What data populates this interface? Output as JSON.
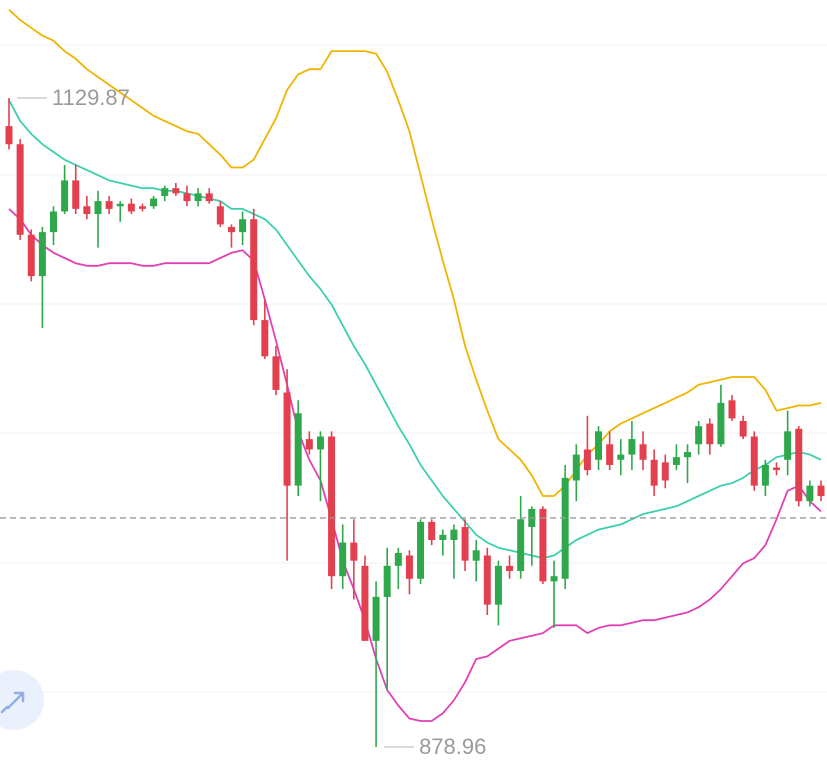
{
  "chart_data": {
    "type": "candlestick",
    "ylim": [
      869.3,
      1167.75
    ],
    "up_color": "#2ea84a",
    "down_color": "#e2404f",
    "price_line": 967.5,
    "price_line_color": "#9a9a9a",
    "open": [
      1119,
      1112,
      1077,
      1061,
      1078,
      1086,
      1098,
      1088,
      1085,
      1090,
      1088,
      1089,
      1088,
      1088,
      1092,
      1095,
      1093,
      1090,
      1093,
      1088,
      1080,
      1078,
      1083,
      1044,
      1030,
      1016,
      980,
      998,
      994,
      999,
      945,
      958,
      949,
      920,
      937,
      949,
      953,
      944,
      966,
      959,
      959,
      964,
      951,
      953,
      934,
      949,
      947,
      964,
      971,
      943,
      944,
      982,
      994,
      990,
      996,
      990,
      992,
      996,
      990,
      989,
      988,
      991,
      996,
      1004,
      996,
      1013,
      1005,
      999,
      980,
      987,
      990,
      1002,
      974,
      980
    ],
    "high": [
      1129.87,
      1114,
      1079,
      1080,
      1088,
      1104,
      1104,
      1092,
      1094,
      1092,
      1090,
      1091,
      1089,
      1092,
      1096,
      1097,
      1096,
      1095,
      1095,
      1090,
      1081,
      1086,
      1087,
      1052,
      1034,
      1025,
      1013,
      1001,
      1001,
      1001,
      965,
      967,
      953,
      943,
      956,
      956,
      955,
      967,
      967,
      963,
      965,
      967,
      959,
      956,
      951,
      953,
      976,
      972,
      972,
      951,
      988,
      996,
      1007,
      1003,
      1001,
      998,
      1005,
      1001,
      994,
      992,
      996,
      996,
      1005,
      1006,
      1019,
      1015,
      1007,
      1001,
      990,
      989,
      1009,
      1003,
      982,
      982
    ],
    "low": [
      1110,
      1075,
      1059,
      1041,
      1073,
      1085,
      1085,
      1083,
      1072,
      1085,
      1082,
      1085,
      1086,
      1087,
      1090,
      1092,
      1088,
      1088,
      1089,
      1080,
      1072,
      1073,
      1042,
      1029,
      1015,
      951,
      976,
      992,
      974,
      940,
      940,
      936,
      920,
      878.96,
      901,
      940,
      938,
      942,
      957,
      953,
      944,
      947,
      943,
      930,
      926,
      944,
      944,
      949,
      942,
      925,
      940,
      974,
      984,
      986,
      986,
      984,
      986,
      986,
      976,
      979,
      986,
      981,
      992,
      992,
      995,
      1005,
      998,
      978,
      976,
      984,
      984,
      972,
      972,
      974
    ],
    "close": [
      1112,
      1077,
      1061,
      1078,
      1086,
      1098,
      1087,
      1085,
      1090,
      1087,
      1089,
      1086,
      1087,
      1091,
      1095,
      1093,
      1090,
      1093,
      1090,
      1081,
      1078,
      1083,
      1044,
      1030,
      1017,
      980,
      1008,
      994,
      999,
      945,
      958,
      951,
      920,
      937,
      949,
      954,
      944,
      966,
      959,
      961,
      963,
      951,
      955,
      934,
      949,
      947,
      967,
      971,
      943,
      945,
      983,
      992,
      986,
      1001,
      988,
      992,
      998,
      990,
      980,
      982,
      991,
      993,
      1003,
      996,
      1012,
      1006,
      999,
      980,
      988,
      986,
      1001,
      974,
      980,
      976
    ],
    "lines": [
      {
        "color": "#f0b400",
        "values": [
          1164,
          1160,
          1157,
          1154,
          1152,
          1148,
          1145,
          1141,
          1138,
          1135,
          1132,
          1129,
          1126,
          1123,
          1121,
          1119,
          1117,
          1116,
          1112,
          1108,
          1103,
          1103,
          1106,
          1114,
          1122,
          1133,
          1139,
          1141,
          1141,
          1148,
          1148,
          1148,
          1148,
          1147,
          1140,
          1129,
          1117,
          1100,
          1083,
          1067,
          1052,
          1034,
          1021,
          1009,
          998,
          994,
          990,
          984,
          976,
          976,
          980,
          986,
          992,
          996,
          1001,
          1004,
          1006,
          1008,
          1010,
          1012,
          1014,
          1016,
          1019,
          1020,
          1021,
          1022,
          1022,
          1022,
          1017,
          1009,
          1010,
          1011,
          1011,
          1012
        ]
      },
      {
        "color": "#3ccfae",
        "values": [
          1129,
          1121,
          1116,
          1112,
          1109,
          1106,
          1104,
          1102,
          1100,
          1098,
          1097,
          1096,
          1095,
          1095,
          1094,
          1094,
          1093,
          1092,
          1091,
          1090,
          1087,
          1087,
          1085,
          1083,
          1079,
          1073,
          1067,
          1061,
          1056,
          1050,
          1042,
          1034,
          1027,
          1019,
          1011,
          1003,
          996,
          988,
          982,
          976,
          971,
          966,
          961,
          958,
          956,
          955,
          954,
          953,
          952,
          953,
          956,
          959,
          961,
          963,
          964,
          965,
          967,
          969,
          970,
          971,
          972,
          974,
          976,
          978,
          980,
          981,
          983,
          986,
          988,
          991,
          992,
          993,
          992,
          990
        ]
      },
      {
        "color": "#e040b4",
        "values": [
          1087,
          1083,
          1077,
          1073,
          1070,
          1068,
          1066,
          1065,
          1065,
          1066,
          1066,
          1066,
          1065,
          1065,
          1066,
          1066,
          1066,
          1066,
          1066,
          1068,
          1070,
          1071,
          1067,
          1052,
          1036,
          1019,
          1001,
          990,
          982,
          967,
          951,
          940,
          928,
          913,
          901,
          895,
          890,
          889,
          889,
          892,
          897,
          904,
          913,
          914,
          917,
          920,
          921,
          922,
          923,
          926,
          926,
          926,
          923,
          925,
          926,
          926,
          927,
          928,
          928,
          929,
          930,
          931,
          933,
          936,
          940,
          945,
          950,
          952,
          957,
          967,
          978,
          980,
          974,
          970
        ]
      }
    ]
  }
}
